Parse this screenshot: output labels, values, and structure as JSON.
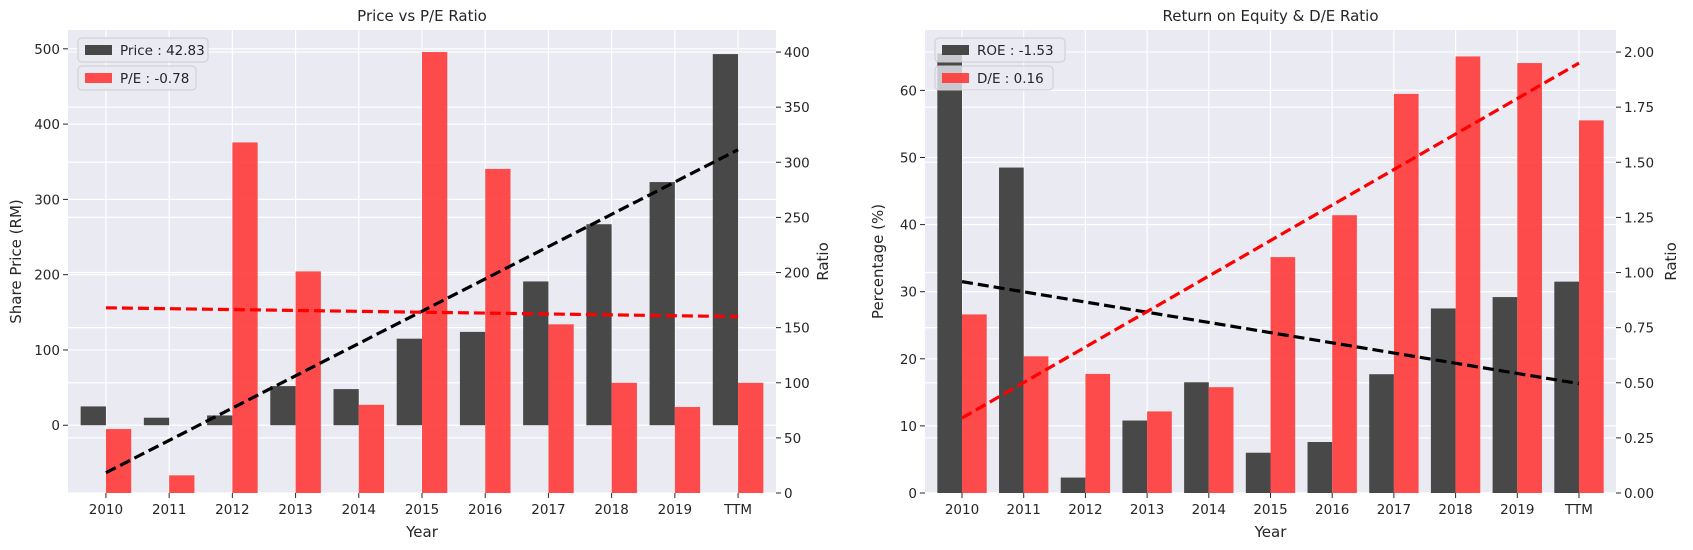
{
  "chart_data": [
    {
      "type": "bar",
      "title": "Price vs P/E Ratio",
      "xlabel": "Year",
      "ylabel": "Share Price (RM)",
      "y2label": "Ratio",
      "categories": [
        "2010",
        "2011",
        "2012",
        "2013",
        "2014",
        "2015",
        "2016",
        "2017",
        "2018",
        "2019",
        "TTM"
      ],
      "ylim": [
        -90,
        525
      ],
      "y2lim": [
        0,
        420
      ],
      "yticks": [
        0,
        100,
        200,
        300,
        400,
        500
      ],
      "y2ticks": [
        0,
        50,
        100,
        150,
        200,
        250,
        300,
        350,
        400
      ],
      "grid": true,
      "legend_position": "top-left",
      "series": [
        {
          "name": "Price : 42.83",
          "axis": "left",
          "color": "#3a3a3a",
          "values": [
            25,
            10,
            13,
            52,
            48,
            115,
            124,
            191,
            267,
            323,
            493
          ]
        },
        {
          "name": "P/E : -0.78",
          "axis": "right",
          "color": "#ff3333",
          "values": [
            58,
            16,
            318,
            201,
            80,
            400,
            294,
            153,
            100,
            78,
            100
          ]
        }
      ],
      "trendlines": [
        {
          "axis": "left",
          "color": "#000000",
          "start": [
            0,
            -63
          ],
          "end": [
            10,
            366
          ]
        },
        {
          "axis": "right",
          "color": "#ff0000",
          "start": [
            0,
            168
          ],
          "end": [
            10,
            160
          ]
        }
      ]
    },
    {
      "type": "bar",
      "title": "Return on Equity & D/E Ratio",
      "xlabel": "Year",
      "ylabel": "Percentage (%)",
      "y2label": "Ratio",
      "categories": [
        "2010",
        "2011",
        "2012",
        "2013",
        "2014",
        "2015",
        "2016",
        "2017",
        "2018",
        "2019",
        "TTM"
      ],
      "ylim": [
        0,
        69
      ],
      "y2lim": [
        0,
        2.1
      ],
      "yticks": [
        0,
        10,
        20,
        30,
        40,
        50,
        60
      ],
      "y2ticks": [
        "0.00",
        "0.25",
        "0.50",
        "0.75",
        "1.00",
        "1.25",
        "1.50",
        "1.75",
        "2.00"
      ],
      "grid": true,
      "legend_position": "top-left",
      "series": [
        {
          "name": "ROE : -1.53",
          "axis": "left",
          "color": "#3a3a3a",
          "values": [
            65.5,
            48.5,
            2.3,
            10.8,
            16.5,
            6.0,
            7.6,
            17.7,
            27.5,
            29.2,
            31.5
          ]
        },
        {
          "name": "D/E : 0.16",
          "axis": "right",
          "color": "#ff3333",
          "values": [
            0.81,
            0.62,
            0.54,
            0.37,
            0.48,
            1.07,
            1.26,
            1.81,
            1.98,
            1.95,
            1.69
          ]
        }
      ],
      "trendlines": [
        {
          "axis": "left",
          "color": "#000000",
          "start": [
            0,
            31.5
          ],
          "end": [
            10,
            16.3
          ]
        },
        {
          "axis": "right",
          "color": "#ff0000",
          "start": [
            0,
            0.34
          ],
          "end": [
            10,
            1.95
          ]
        }
      ]
    }
  ]
}
